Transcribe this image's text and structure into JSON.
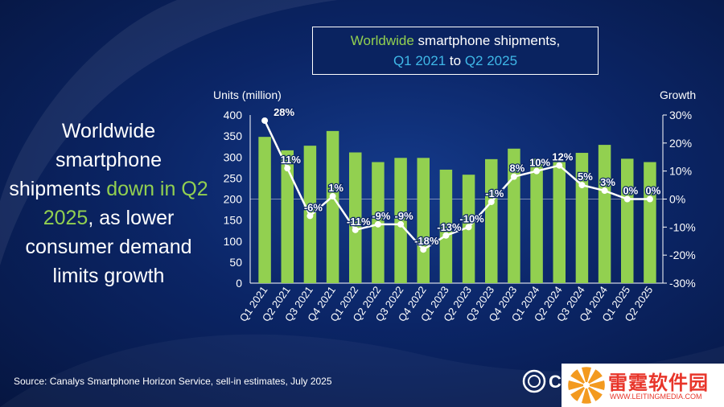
{
  "title": {
    "part1": "Worldwide",
    "part2": " smartphone shipments,",
    "part3": "Q1 2021",
    "part4": " to ",
    "part5": "Q2 2025"
  },
  "headline": {
    "part1": "Worldwide smartphone shipments ",
    "part2": "down in Q2 2025",
    "part3": ", as lower consumer demand limits growth"
  },
  "source": "Source: Canalys Smartphone Horizon Service, sell-in estimates, July 2025",
  "logo_text": "C",
  "watermark": {
    "title": "雷霆软件园",
    "url": "WWW.LEITINGMEDIA.COM"
  },
  "colors": {
    "bar": "#92d050",
    "line": "#ffffff",
    "title_green": "#92d050",
    "title_cyan": "#3fb8e8"
  },
  "chart_data": {
    "type": "bar",
    "categories": [
      "Q1 2021",
      "Q2 2021",
      "Q3 2021",
      "Q4 2021",
      "Q1 2022",
      "Q2 2022",
      "Q3 2022",
      "Q4 2022",
      "Q1 2023",
      "Q2 2023",
      "Q3 2023",
      "Q4 2023",
      "Q1 2024",
      "Q2 2024",
      "Q3 2024",
      "Q4 2024",
      "Q1 2025",
      "Q2 2025"
    ],
    "series": [
      {
        "type": "bar",
        "axis": "left",
        "values": [
          348,
          316,
          327,
          362,
          311,
          288,
          298,
          298,
          270,
          258,
          295,
          320,
          296,
          288,
          310,
          329,
          296,
          288
        ]
      },
      {
        "type": "line",
        "axis": "right",
        "values": [
          28,
          11,
          -6,
          1,
          -11,
          -9,
          -9,
          -18,
          -13,
          -10,
          -1,
          8,
          10,
          12,
          5,
          3,
          0,
          0
        ],
        "labels": [
          "28%",
          "11%",
          "-6%",
          "1%",
          "-11%",
          "-9%",
          "-9%",
          "-18%",
          "-13%",
          "-10%",
          "-1%",
          "8%",
          "10%",
          "12%",
          "5%",
          "3%",
          "0%",
          "0%"
        ]
      }
    ],
    "ylabel": "Units (million)",
    "y2label": "Growth",
    "ylim": [
      0,
      400
    ],
    "y_ticks": [
      "0",
      "50",
      "100",
      "150",
      "200",
      "250",
      "300",
      "350",
      "400"
    ],
    "y2lim": [
      -30,
      30
    ],
    "y2_ticks": [
      "-30%",
      "-20%",
      "-10%",
      "0%",
      "10%",
      "20%",
      "30%"
    ],
    "grid": false,
    "legend": "none"
  }
}
